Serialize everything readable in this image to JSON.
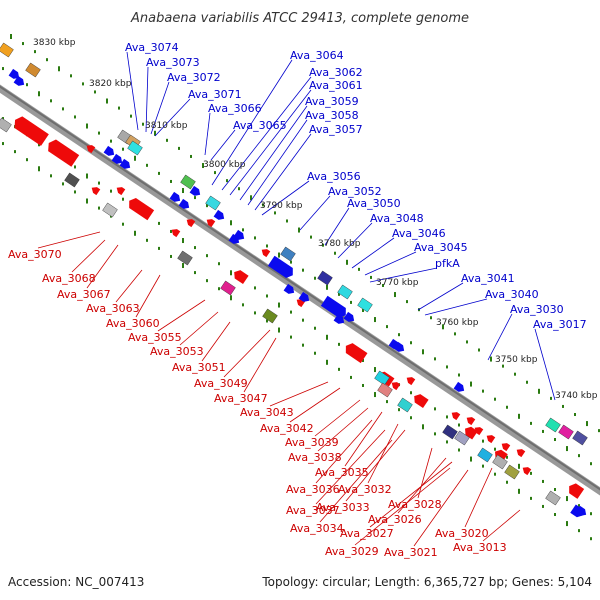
{
  "title": "Anabaena variabilis ATCC 29413, complete genome",
  "footer": {
    "accession": "Accession: NC_007413",
    "topology": "Topology: circular; Length: 6,365,727 bp; Genes: 5,104"
  },
  "colors": {
    "backbone": "#8a8a8a",
    "forward_gene": "#0a0aee",
    "reverse_gene": "#ee0a0a",
    "tick_dot": "#2a7a10",
    "gene_label_forward": "#0000cc",
    "gene_label_reverse": "#cc0000"
  },
  "kbp_ticks": [
    "3830 kbp",
    "3820 kbp",
    "3810 kbp",
    "3800 kbp",
    "3790 kbp",
    "3780 kbp",
    "3770 kbp",
    "3760 kbp",
    "3750 kbp",
    "3740 kbp"
  ],
  "forward_labels": [
    "Ava_3074",
    "Ava_3073",
    "Ava_3072",
    "Ava_3071",
    "Ava_3066",
    "Ava_3065",
    "Ava_3064",
    "Ava_3062",
    "Ava_3061",
    "Ava_3059",
    "Ava_3058",
    "Ava_3057",
    "Ava_3056",
    "Ava_3052",
    "Ava_3050",
    "Ava_3048",
    "Ava_3046",
    "Ava_3045",
    "pfkA",
    "Ava_3041",
    "Ava_3040",
    "Ava_3030",
    "Ava_3017"
  ],
  "reverse_labels": [
    "Ava_3070",
    "Ava_3068",
    "Ava_3067",
    "Ava_3063",
    "Ava_3060",
    "Ava_3055",
    "Ava_3053",
    "Ava_3051",
    "Ava_3049",
    "Ava_3047",
    "Ava_3043",
    "Ava_3042",
    "Ava_3039",
    "Ava_3038",
    "Ava_3035",
    "Ava_3036",
    "Ava_3032",
    "Ava_3037",
    "Ava_3033",
    "Ava_3028",
    "Ava_3034",
    "Ava_3026",
    "Ava_3027",
    "Ava_3020",
    "Ava_3029",
    "Ava_3021",
    "Ava_3013"
  ]
}
